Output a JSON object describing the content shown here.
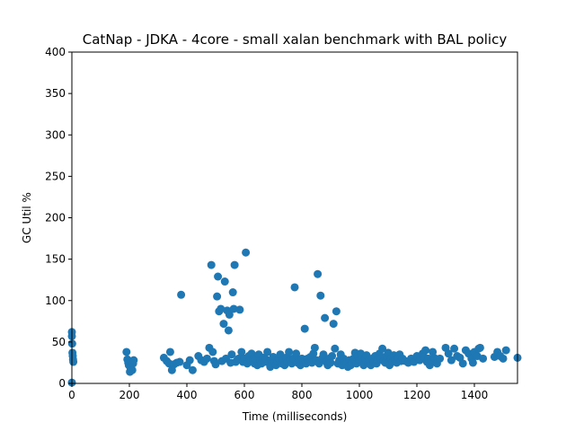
{
  "chart_data": {
    "type": "scatter",
    "title": "CatNap - JDKA - 4core -  small xalan benchmark with BAL policy",
    "xlabel": "Time (milliseconds)",
    "ylabel": "GC Util %",
    "xlim": [
      0,
      1550
    ],
    "ylim": [
      0,
      400
    ],
    "xticks": [
      "0",
      "200",
      "400",
      "600",
      "800",
      "1000",
      "1200",
      "1400"
    ],
    "yticks": [
      "0",
      "50",
      "100",
      "150",
      "200",
      "250",
      "300",
      "350",
      "400"
    ],
    "grid": false,
    "color": "#1f77b4",
    "series": [
      {
        "points": [
          [
            0,
            62
          ],
          [
            0,
            57
          ],
          [
            1,
            48
          ],
          [
            2,
            37
          ],
          [
            3,
            33
          ],
          [
            4,
            29
          ],
          [
            5,
            26
          ],
          [
            0,
            1
          ],
          [
            190,
            38
          ],
          [
            193,
            29
          ],
          [
            196,
            25
          ],
          [
            198,
            22
          ],
          [
            200,
            27
          ],
          [
            202,
            14
          ],
          [
            204,
            18
          ],
          [
            207,
            26
          ],
          [
            210,
            16
          ],
          [
            213,
            24
          ],
          [
            215,
            28
          ],
          [
            320,
            31
          ],
          [
            330,
            27
          ],
          [
            338,
            24
          ],
          [
            342,
            38
          ],
          [
            348,
            16
          ],
          [
            355,
            23
          ],
          [
            365,
            25
          ],
          [
            375,
            26
          ],
          [
            380,
            107
          ],
          [
            400,
            22
          ],
          [
            410,
            28
          ],
          [
            420,
            16
          ],
          [
            440,
            33
          ],
          [
            450,
            28
          ],
          [
            460,
            26
          ],
          [
            470,
            30
          ],
          [
            478,
            43
          ],
          [
            485,
            143
          ],
          [
            490,
            38
          ],
          [
            495,
            27
          ],
          [
            500,
            23
          ],
          [
            505,
            105
          ],
          [
            508,
            129
          ],
          [
            512,
            87
          ],
          [
            518,
            90
          ],
          [
            522,
            27
          ],
          [
            528,
            72
          ],
          [
            532,
            123
          ],
          [
            536,
            30
          ],
          [
            540,
            88
          ],
          [
            545,
            64
          ],
          [
            548,
            83
          ],
          [
            552,
            25
          ],
          [
            556,
            35
          ],
          [
            560,
            110
          ],
          [
            563,
            90
          ],
          [
            566,
            143
          ],
          [
            570,
            26
          ],
          [
            575,
            28
          ],
          [
            580,
            30
          ],
          [
            584,
            89
          ],
          [
            590,
            38
          ],
          [
            595,
            26
          ],
          [
            600,
            30
          ],
          [
            605,
            158
          ],
          [
            610,
            24
          ],
          [
            615,
            33
          ],
          [
            620,
            28
          ],
          [
            625,
            36
          ],
          [
            630,
            29
          ],
          [
            635,
            24
          ],
          [
            640,
            30
          ],
          [
            645,
            22
          ],
          [
            650,
            35
          ],
          [
            655,
            27
          ],
          [
            660,
            24
          ],
          [
            665,
            31
          ],
          [
            670,
            26
          ],
          [
            675,
            29
          ],
          [
            680,
            38
          ],
          [
            685,
            25
          ],
          [
            690,
            20
          ],
          [
            695,
            28
          ],
          [
            700,
            32
          ],
          [
            705,
            25
          ],
          [
            710,
            22
          ],
          [
            715,
            27
          ],
          [
            720,
            30
          ],
          [
            725,
            35
          ],
          [
            730,
            24
          ],
          [
            735,
            28
          ],
          [
            740,
            22
          ],
          [
            745,
            31
          ],
          [
            750,
            26
          ],
          [
            755,
            38
          ],
          [
            760,
            29
          ],
          [
            765,
            24
          ],
          [
            770,
            30
          ],
          [
            775,
            116
          ],
          [
            780,
            36
          ],
          [
            785,
            25
          ],
          [
            790,
            28
          ],
          [
            795,
            22
          ],
          [
            800,
            30
          ],
          [
            805,
            26
          ],
          [
            810,
            66
          ],
          [
            815,
            24
          ],
          [
            820,
            30
          ],
          [
            825,
            27
          ],
          [
            830,
            32
          ],
          [
            835,
            25
          ],
          [
            840,
            36
          ],
          [
            845,
            43
          ],
          [
            850,
            28
          ],
          [
            855,
            132
          ],
          [
            860,
            24
          ],
          [
            865,
            106
          ],
          [
            870,
            30
          ],
          [
            875,
            35
          ],
          [
            880,
            79
          ],
          [
            885,
            26
          ],
          [
            890,
            22
          ],
          [
            895,
            30
          ],
          [
            900,
            25
          ],
          [
            905,
            33
          ],
          [
            910,
            72
          ],
          [
            915,
            42
          ],
          [
            920,
            87
          ],
          [
            925,
            24
          ],
          [
            930,
            28
          ],
          [
            935,
            35
          ],
          [
            940,
            22
          ],
          [
            945,
            30
          ],
          [
            950,
            26
          ],
          [
            955,
            24
          ],
          [
            960,
            20
          ],
          [
            965,
            28
          ],
          [
            970,
            22
          ],
          [
            975,
            25
          ],
          [
            980,
            30
          ],
          [
            985,
            37
          ],
          [
            990,
            24
          ],
          [
            995,
            33
          ],
          [
            1000,
            28
          ],
          [
            1005,
            36
          ],
          [
            1010,
            25
          ],
          [
            1015,
            22
          ],
          [
            1020,
            30
          ],
          [
            1025,
            34
          ],
          [
            1030,
            25
          ],
          [
            1035,
            28
          ],
          [
            1040,
            22
          ],
          [
            1045,
            30
          ],
          [
            1050,
            26
          ],
          [
            1055,
            33
          ],
          [
            1060,
            24
          ],
          [
            1065,
            29
          ],
          [
            1070,
            36
          ],
          [
            1075,
            30
          ],
          [
            1080,
            42
          ],
          [
            1085,
            27
          ],
          [
            1090,
            25
          ],
          [
            1095,
            33
          ],
          [
            1100,
            37
          ],
          [
            1105,
            22
          ],
          [
            1110,
            30
          ],
          [
            1115,
            26
          ],
          [
            1120,
            34
          ],
          [
            1125,
            28
          ],
          [
            1130,
            25
          ],
          [
            1135,
            31
          ],
          [
            1140,
            35
          ],
          [
            1145,
            27
          ],
          [
            1150,
            30
          ],
          [
            1160,
            27
          ],
          [
            1170,
            25
          ],
          [
            1180,
            30
          ],
          [
            1190,
            26
          ],
          [
            1200,
            33
          ],
          [
            1210,
            28
          ],
          [
            1220,
            36
          ],
          [
            1225,
            32
          ],
          [
            1230,
            40
          ],
          [
            1235,
            26
          ],
          [
            1240,
            30
          ],
          [
            1245,
            22
          ],
          [
            1250,
            27
          ],
          [
            1255,
            38
          ],
          [
            1260,
            31
          ],
          [
            1270,
            24
          ],
          [
            1280,
            30
          ],
          [
            1300,
            43
          ],
          [
            1310,
            36
          ],
          [
            1320,
            28
          ],
          [
            1330,
            42
          ],
          [
            1340,
            33
          ],
          [
            1350,
            31
          ],
          [
            1360,
            24
          ],
          [
            1370,
            40
          ],
          [
            1380,
            36
          ],
          [
            1390,
            30
          ],
          [
            1395,
            25
          ],
          [
            1400,
            38
          ],
          [
            1410,
            33
          ],
          [
            1415,
            42
          ],
          [
            1420,
            43
          ],
          [
            1430,
            30
          ],
          [
            1470,
            32
          ],
          [
            1480,
            38
          ],
          [
            1490,
            33
          ],
          [
            1500,
            30
          ],
          [
            1510,
            40
          ],
          [
            1550,
            31
          ]
        ]
      }
    ]
  }
}
